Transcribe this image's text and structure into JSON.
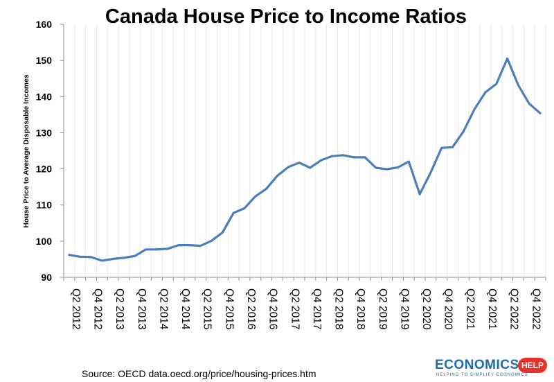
{
  "chart_data": {
    "type": "line",
    "title": "Canada House Price to Income Ratios",
    "ylabel": "House Price to Average Disposable Incomes",
    "xlabel": "",
    "ylim": [
      90,
      160
    ],
    "yticks": [
      "90",
      "100",
      "110",
      "120",
      "130",
      "140",
      "150",
      "160"
    ],
    "grid": "vertical-per-quarter",
    "categories": [
      "Q2 2012",
      "Q3 2012",
      "Q4 2012",
      "Q1 2013",
      "Q2 2013",
      "Q3 2013",
      "Q4 2013",
      "Q1 2014",
      "Q2 2014",
      "Q3 2014",
      "Q4 2014",
      "Q1 2015",
      "Q2 2015",
      "Q3 2015",
      "Q4 2015",
      "Q1 2016",
      "Q2 2016",
      "Q3 2016",
      "Q4 2016",
      "Q1 2017",
      "Q2 2017",
      "Q3 2017",
      "Q4 2017",
      "Q1 2018",
      "Q2 2018",
      "Q3 2018",
      "Q4 2018",
      "Q1 2019",
      "Q2 2019",
      "Q3 2019",
      "Q4 2019",
      "Q1 2020",
      "Q2 2020",
      "Q3 2020",
      "Q4 2020",
      "Q1 2021",
      "Q2 2021",
      "Q3 2021",
      "Q4 2021",
      "Q1 2022",
      "Q2 2022",
      "Q3 2022",
      "Q4 2022",
      "Q1 2023"
    ],
    "xtick_labels": [
      "Q2 2012",
      "Q4 2012",
      "Q2 2013",
      "Q4 2013",
      "Q2 2014",
      "Q4 2014",
      "Q2 2015",
      "Q4 2015",
      "Q2 2016",
      "Q4 2016",
      "Q2 2017",
      "Q4 2017",
      "Q2 2018",
      "Q4 2018",
      "Q2 2019",
      "Q4 2019",
      "Q2 2020",
      "Q4 2020",
      "Q2 2021",
      "Q4 2021",
      "Q2 2022",
      "Q4 2022"
    ],
    "series": [
      {
        "color": "#4a7ebb",
        "values": [
          96.2,
          95.7,
          95.6,
          94.6,
          95.1,
          95.4,
          95.9,
          97.7,
          97.7,
          97.9,
          98.9,
          98.9,
          98.7,
          100.1,
          102.4,
          107.8,
          109.1,
          112.4,
          114.5,
          118.1,
          120.5,
          121.7,
          120.3,
          122.4,
          123.5,
          123.8,
          123.2,
          123.2,
          120.3,
          119.9,
          120.4,
          122.0,
          113.0,
          119.0,
          125.8,
          126.0,
          130.4,
          136.5,
          141.2,
          143.5,
          150.5,
          143.1,
          138.0,
          135.4
        ]
      }
    ]
  },
  "footer": {
    "source": "Source: OECD data.oecd.org/price/housing-prices.htm"
  },
  "logo": {
    "word": "ECONOMICS",
    "badge": "HELP",
    "tagline": "HELPING TO SIMPLIFY ECONOMICS",
    "word_color": "#1d6bb0",
    "badge_color": "#e8322c"
  }
}
